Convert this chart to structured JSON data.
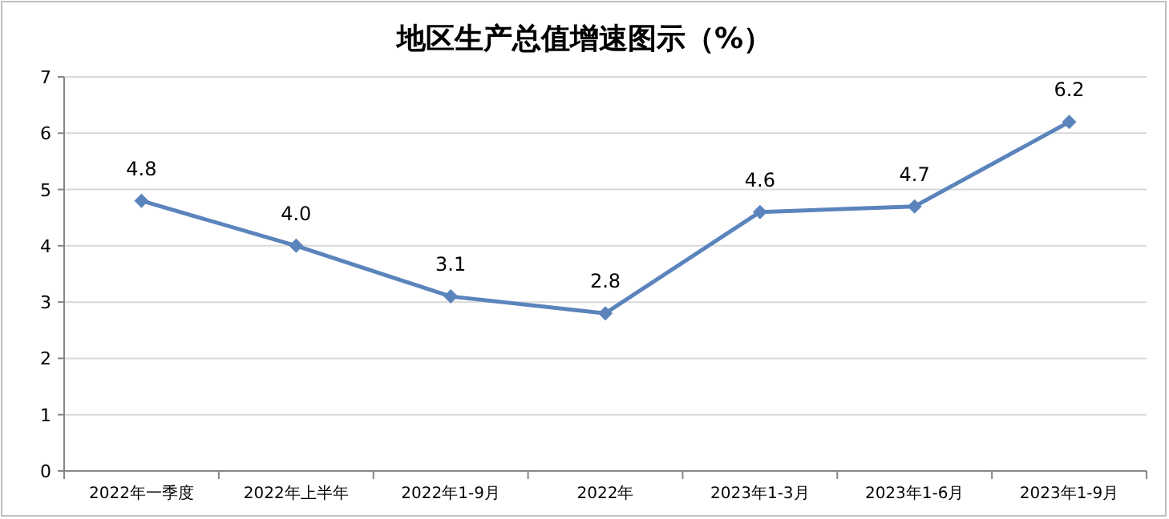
{
  "chart_data": {
    "type": "line",
    "title": "地区生产总值增速图示（%）",
    "categories": [
      "2022年一季度",
      "2022年上半年",
      "2022年1-9月",
      "2022年",
      "2023年1-3月",
      "2023年1-6月",
      "2023年1-9月"
    ],
    "series": [
      {
        "color": "#5b84bd",
        "values": [
          4.8,
          4.0,
          3.1,
          2.8,
          4.6,
          4.7,
          6.2
        ],
        "value_labels": [
          "4.8",
          "4.0",
          "3.1",
          "2.8",
          "4.6",
          "4.7",
          "6.2"
        ]
      }
    ],
    "ylim": [
      0,
      7
    ],
    "yticks": [
      0,
      1,
      2,
      3,
      4,
      5,
      6,
      7
    ],
    "grid": "y",
    "marker": "diamond"
  }
}
